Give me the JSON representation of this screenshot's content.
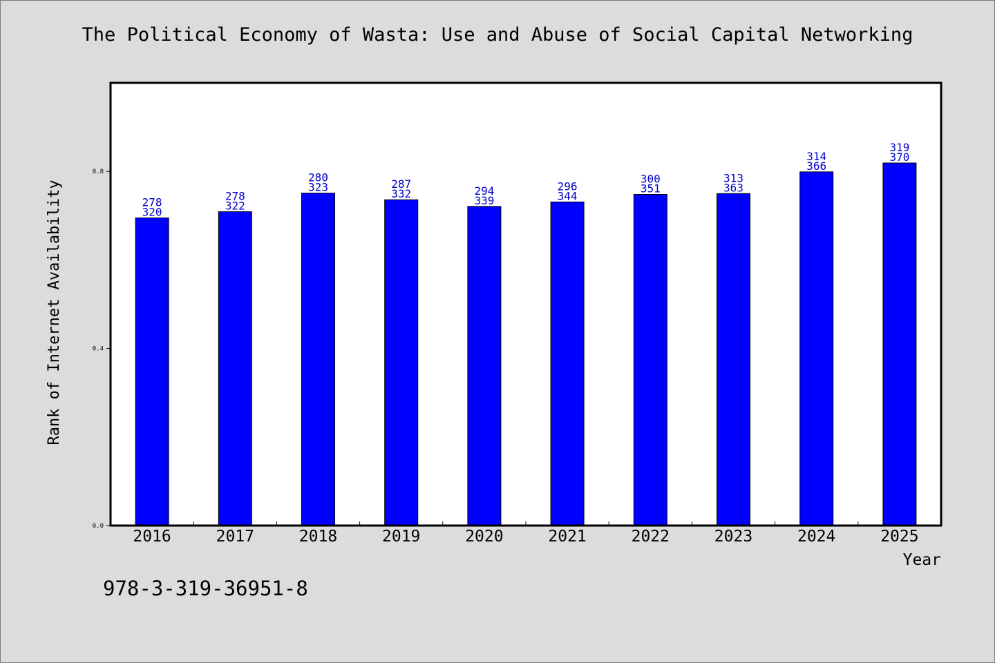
{
  "title": "The Political Economy of Wasta: Use and Abuse of Social Capital Networking",
  "footer": {
    "isbn": "978-3-319-36951-8"
  },
  "colors": {
    "bar": "#0000ff",
    "label": "#0000cc",
    "background": "#dcdcdc",
    "plot": "#ffffff"
  },
  "chart_data": {
    "type": "bar",
    "categories": [
      "2016",
      "2017",
      "2018",
      "2019",
      "2020",
      "2021",
      "2022",
      "2023",
      "2024",
      "2025"
    ],
    "values": [
      0.695,
      0.709,
      0.751,
      0.736,
      0.721,
      0.731,
      0.748,
      0.75,
      0.799,
      0.819
    ],
    "label_top": [
      "278",
      "278",
      "280",
      "287",
      "294",
      "296",
      "300",
      "313",
      "314",
      "319"
    ],
    "label_bottom": [
      "320",
      "322",
      "323",
      "332",
      "339",
      "344",
      "351",
      "363",
      "366",
      "370"
    ],
    "xlabel": "Year",
    "ylabel": "Rank of Internet Availability",
    "ylim": [
      0,
      1.0
    ],
    "yticks": [
      0.0,
      0.4,
      0.8
    ],
    "ytick_labels": [
      "0.0",
      "0.4",
      "0.8"
    ],
    "grid": false,
    "legend": "none"
  }
}
